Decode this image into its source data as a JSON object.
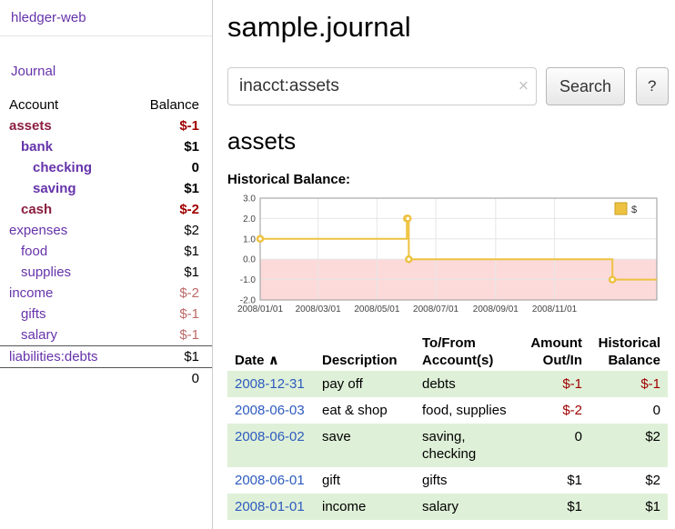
{
  "app": {
    "title": "hledger-web"
  },
  "colors": {
    "accent_purple": "#6633aa",
    "account_negative_name": "#8b1e3f",
    "negative_strong": "#a00000",
    "negative_soft": "#bd6868",
    "date_link_blue": "#2d5bbf",
    "row_green": "#dff0d8",
    "chart_line": "#edc240",
    "chart_negative_fill": "#fcdada"
  },
  "sidebar": {
    "journal_label": "Journal",
    "headers": {
      "account": "Account",
      "balance": "Balance"
    },
    "accounts": [
      {
        "name": "assets",
        "depth": 0,
        "bold": true,
        "style": "maroon",
        "balance": "$-1",
        "balance_style": "neg"
      },
      {
        "name": "bank",
        "depth": 1,
        "bold": true,
        "style": "purple",
        "balance": "$1",
        "balance_style": "pos"
      },
      {
        "name": "checking",
        "depth": 2,
        "bold": true,
        "style": "purple",
        "balance": "0",
        "balance_style": "pos"
      },
      {
        "name": "saving",
        "depth": 2,
        "bold": true,
        "style": "purple",
        "balance": "$1",
        "balance_style": "pos"
      },
      {
        "name": "cash",
        "depth": 1,
        "bold": true,
        "style": "maroon",
        "balance": "$-2",
        "balance_style": "neg"
      },
      {
        "name": "expenses",
        "depth": 0,
        "bold": false,
        "style": "purple",
        "balance": "$2",
        "balance_style": "pos"
      },
      {
        "name": "food",
        "depth": 1,
        "bold": false,
        "style": "purple",
        "balance": "$1",
        "balance_style": "pos"
      },
      {
        "name": "supplies",
        "depth": 1,
        "bold": false,
        "style": "purple",
        "balance": "$1",
        "balance_style": "pos"
      },
      {
        "name": "income",
        "depth": 0,
        "bold": false,
        "style": "purple",
        "balance": "$-2",
        "balance_style": "neg-soft"
      },
      {
        "name": "gifts",
        "depth": 1,
        "bold": false,
        "style": "purple",
        "balance": "$-1",
        "balance_style": "neg-soft"
      },
      {
        "name": "salary",
        "depth": 1,
        "bold": false,
        "style": "purple",
        "balance": "$-1",
        "balance_style": "neg-soft"
      },
      {
        "name": "liabilities:debts",
        "depth": 0,
        "bold": false,
        "style": "purple",
        "balance": "$1",
        "balance_style": "pos",
        "rule_above": true
      }
    ],
    "total": "0"
  },
  "main": {
    "title": "sample.journal",
    "search": {
      "value": "inacct:assets",
      "clear_icon": "×",
      "button_label": "Search",
      "help_label": "?"
    },
    "account_heading": "assets",
    "chart_label": "Historical Balance:",
    "register": {
      "headers": {
        "date": "Date",
        "sort_icon": "∧",
        "description": "Description",
        "accounts": [
          "To/From",
          "Account(s)"
        ],
        "amount": [
          "Amount",
          "Out/In"
        ],
        "balance": [
          "Historical",
          "Balance"
        ]
      },
      "rows": [
        {
          "date": "2008-12-31",
          "description": "pay off",
          "accounts": "debts",
          "amount": "$-1",
          "balance": "$-1"
        },
        {
          "date": "2008-06-03",
          "description": "eat & shop",
          "accounts": "food, supplies",
          "amount": "$-2",
          "balance": "0"
        },
        {
          "date": "2008-06-02",
          "description": "save",
          "accounts": "saving, checking",
          "amount": "0",
          "balance": "$2"
        },
        {
          "date": "2008-06-01",
          "description": "gift",
          "accounts": "gifts",
          "amount": "$1",
          "balance": "$2"
        },
        {
          "date": "2008-01-01",
          "description": "income",
          "accounts": "salary",
          "amount": "$1",
          "balance": "$1"
        }
      ]
    }
  },
  "chart_data": {
    "type": "line",
    "step": true,
    "title": "Historical Balance",
    "xlabel": "",
    "ylabel": "",
    "series": [
      {
        "name": "$",
        "color": "#edc240",
        "points": [
          [
            "2008-01-01",
            1
          ],
          [
            "2008-06-01",
            2
          ],
          [
            "2008-06-02",
            2
          ],
          [
            "2008-06-03",
            0
          ],
          [
            "2008-12-31",
            -1
          ]
        ]
      }
    ],
    "x_domain": [
      "2008-01-01",
      "2009-02-15"
    ],
    "x_ticks": [
      {
        "date": "2008-01-01",
        "label": "2008/01/01"
      },
      {
        "date": "2008-03-01",
        "label": "2008/03/01"
      },
      {
        "date": "2008-05-01",
        "label": "2008/05/01"
      },
      {
        "date": "2008-07-01",
        "label": "2008/07/01"
      },
      {
        "date": "2008-09-01",
        "label": "2008/09/01"
      },
      {
        "date": "2008-11-01",
        "label": "2008/11/01"
      }
    ],
    "y_ticks": [
      3.0,
      2.0,
      1.0,
      0.0,
      -1.0,
      -2.0
    ],
    "ylim": [
      -2,
      3
    ],
    "extend_to_end": true,
    "grid": true,
    "negative_fill": "#fcdada",
    "legend_position": "top-right"
  }
}
